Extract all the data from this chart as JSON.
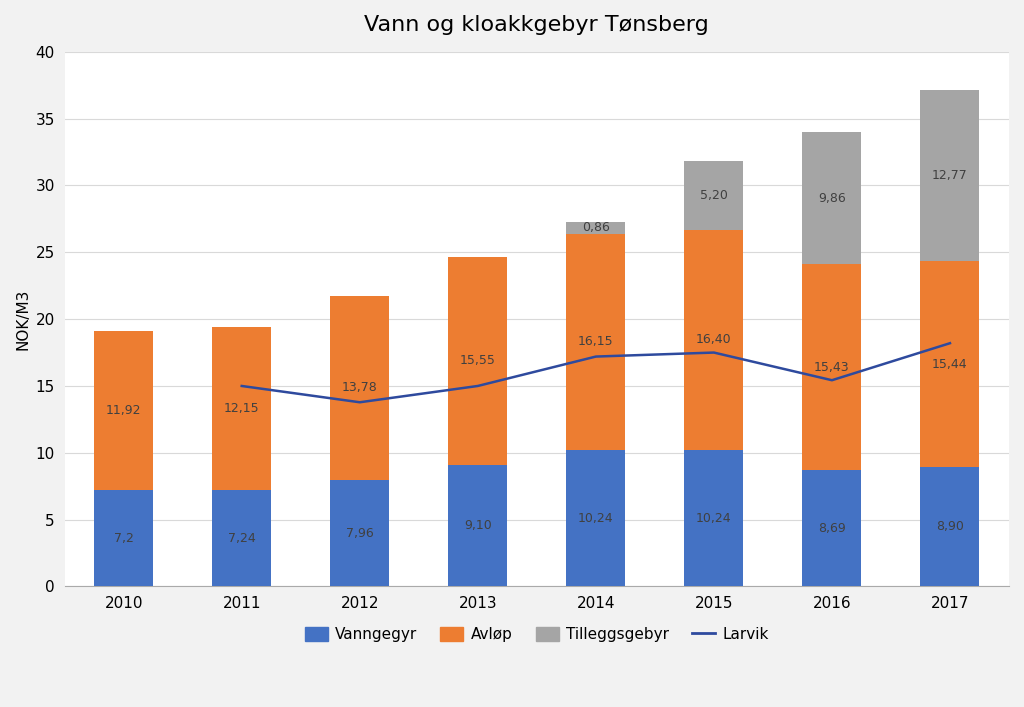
{
  "title": "Vann og kloakkgebyr Tønsberg",
  "years": [
    2010,
    2011,
    2012,
    2013,
    2014,
    2015,
    2016,
    2017
  ],
  "vanngegyr": [
    7.2,
    7.24,
    7.96,
    9.1,
    10.24,
    10.24,
    8.69,
    8.9
  ],
  "avlop": [
    11.92,
    12.15,
    13.78,
    15.55,
    16.15,
    16.4,
    15.43,
    15.44
  ],
  "tilleggsgebyr": [
    0.0,
    0.0,
    0.0,
    0.0,
    0.86,
    5.2,
    9.86,
    12.77
  ],
  "larvik": [
    null,
    15.0,
    13.78,
    15.0,
    17.2,
    17.5,
    15.43,
    18.2
  ],
  "color_vanngegyr": "#4472C4",
  "color_avlop": "#ED7D31",
  "color_tilleggsgebyr": "#A5A5A5",
  "color_larvik": "#2E4A9E",
  "ylabel": "NOK/M3",
  "ylim": [
    0,
    40
  ],
  "yticks": [
    0,
    5,
    10,
    15,
    20,
    25,
    30,
    35,
    40
  ],
  "background_color": "#F2F2F2",
  "plot_bg_color": "#FFFFFF",
  "grid_color": "#D9D9D9",
  "figsize": [
    10.24,
    7.07
  ],
  "dpi": 100,
  "bar_width": 0.5,
  "legend_labels": [
    "Vanngegyr",
    "Avløp",
    "Tilleggsgebyr",
    "Larvik"
  ],
  "label_fontsize": 9,
  "vanngegyr_labels": [
    "7,2",
    "7,24",
    "7,96",
    "9,10",
    "10,24",
    "10,24",
    "8,69",
    "8,90"
  ],
  "avlop_labels": [
    "11,92",
    "12,15",
    "13,78",
    "15,55",
    "16,15",
    "16,40",
    "15,43",
    "15,44"
  ],
  "tilleggsgebyr_labels": [
    "",
    "",
    "",
    "",
    "0,86",
    "5,20",
    "9,86",
    "12,77"
  ]
}
